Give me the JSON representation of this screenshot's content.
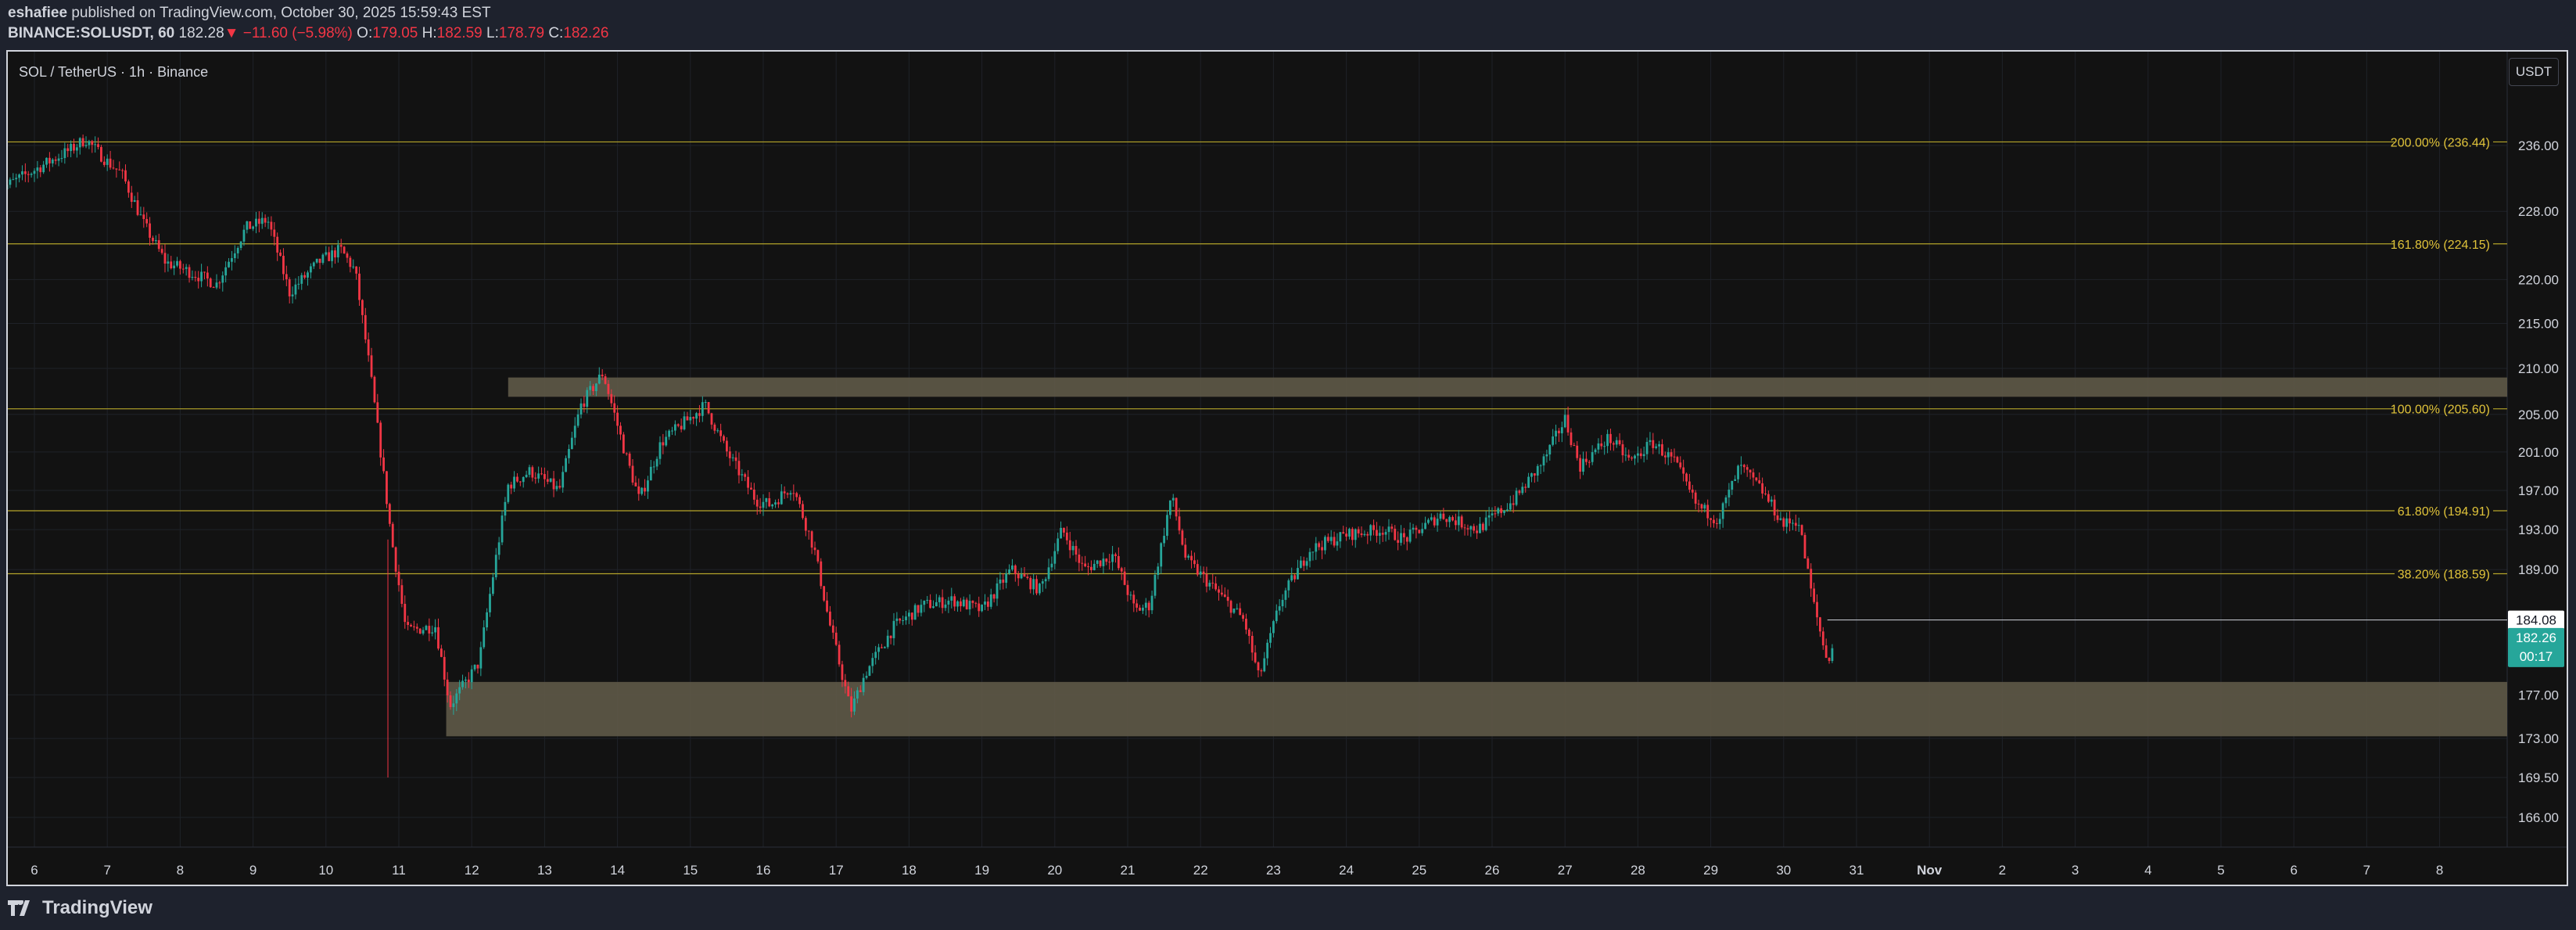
{
  "header": {
    "publisher": "eshafiee",
    "published_text": "published on TradingView.com, October 30, 2025 15:59:43 EST",
    "symbol": "BINANCE:SOLUSDT, 60",
    "last": "182.28",
    "change": "−11.60 (−5.98%)",
    "o_label": "O:",
    "o_value": "179.05",
    "h_label": "H:",
    "h_value": "182.59",
    "l_label": "L:",
    "l_value": "178.79",
    "c_label": "C:",
    "c_value": "182.26"
  },
  "legend": {
    "title": "SOL / TetherUS · 1h · Binance"
  },
  "currency_button": "USDT",
  "footer": {
    "brand": "TradingView"
  },
  "colors": {
    "up": "#26a69a",
    "down": "#f23645",
    "fib": "#b5a52a",
    "fib_text": "#e0c33a",
    "zone": "#5c5646",
    "background": "#121212",
    "axis_text": "#d1d4dc"
  },
  "chart_data": {
    "type": "candlestick",
    "title": "SOL / TetherUS · 1h · Binance",
    "ylim": [
      163,
      240
    ],
    "y_scale": "log",
    "x_tick_labels": [
      "6",
      "7",
      "8",
      "9",
      "10",
      "11",
      "12",
      "13",
      "14",
      "15",
      "16",
      "17",
      "18",
      "19",
      "20",
      "21",
      "22",
      "23",
      "24",
      "25",
      "26",
      "27",
      "28",
      "29",
      "30",
      "31",
      "Nov",
      "2",
      "3",
      "4",
      "5",
      "6",
      "7",
      "8"
    ],
    "y_tick_labels": [
      "236.00",
      "228.00",
      "220.00",
      "215.00",
      "210.00",
      "205.00",
      "201.00",
      "197.00",
      "193.00",
      "189.00",
      "177.00",
      "173.00",
      "169.50",
      "166.00"
    ],
    "fib_levels": [
      {
        "label": "200.00% (236.44)",
        "price": 236.44
      },
      {
        "label": "161.80% (224.15)",
        "price": 224.15
      },
      {
        "label": "100.00% (205.60)",
        "price": 205.6
      },
      {
        "label": "61.80% (194.91)",
        "price": 194.91
      },
      {
        "label": "38.20% (188.59)",
        "price": 188.59
      }
    ],
    "zones": [
      {
        "name": "resistance",
        "top": 209.0,
        "bottom": 206.9,
        "start_day": 12.5
      },
      {
        "name": "support",
        "top": 178.2,
        "bottom": 173.2,
        "start_day": 11.65
      }
    ],
    "prev_close_line": {
      "price": 184.08,
      "label": "184.08"
    },
    "last_price": {
      "price": 182.26,
      "label": "182.26",
      "countdown": "00:17"
    },
    "price_path": [
      [
        5.5,
        230.5
      ],
      [
        6.0,
        233.0
      ],
      [
        6.5,
        235.5
      ],
      [
        6.7,
        236.8
      ],
      [
        7.0,
        234.0
      ],
      [
        7.2,
        232.5
      ],
      [
        7.5,
        226.5
      ],
      [
        7.8,
        222.0
      ],
      [
        8.1,
        221.0
      ],
      [
        8.5,
        219.5
      ],
      [
        8.9,
        226.0
      ],
      [
        9.2,
        227.0
      ],
      [
        9.5,
        218.5
      ],
      [
        9.9,
        222.0
      ],
      [
        10.2,
        223.5
      ],
      [
        10.4,
        221.0
      ],
      [
        10.6,
        210.0
      ],
      [
        10.9,
        192.0
      ],
      [
        11.1,
        183.0
      ],
      [
        11.5,
        183.5
      ],
      [
        11.7,
        176.0
      ],
      [
        11.9,
        178.0
      ],
      [
        12.1,
        180.0
      ],
      [
        12.5,
        197.5
      ],
      [
        12.8,
        199.0
      ],
      [
        13.2,
        197.0
      ],
      [
        13.5,
        206.0
      ],
      [
        13.8,
        209.5
      ],
      [
        14.1,
        201.0
      ],
      [
        14.3,
        196.0
      ],
      [
        14.6,
        202.0
      ],
      [
        14.9,
        204.0
      ],
      [
        15.2,
        206.0
      ],
      [
        15.5,
        201.0
      ],
      [
        15.9,
        196.0
      ],
      [
        16.1,
        195.5
      ],
      [
        16.4,
        197.5
      ],
      [
        16.7,
        191.0
      ],
      [
        16.9,
        184.0
      ],
      [
        17.2,
        175.5
      ],
      [
        17.4,
        179.0
      ],
      [
        17.8,
        183.5
      ],
      [
        18.2,
        185.5
      ],
      [
        18.6,
        186.0
      ],
      [
        19.0,
        185.0
      ],
      [
        19.4,
        189.0
      ],
      [
        19.8,
        187.0
      ],
      [
        20.1,
        193.0
      ],
      [
        20.4,
        189.0
      ],
      [
        20.8,
        190.5
      ],
      [
        21.1,
        185.0
      ],
      [
        21.3,
        185.5
      ],
      [
        21.6,
        196.5
      ],
      [
        21.8,
        190.0
      ],
      [
        22.2,
        187.0
      ],
      [
        22.6,
        184.0
      ],
      [
        22.8,
        178.5
      ],
      [
        23.1,
        186.0
      ],
      [
        23.5,
        191.0
      ],
      [
        24.0,
        192.5
      ],
      [
        24.5,
        193.0
      ],
      [
        24.8,
        192.0
      ],
      [
        25.3,
        194.5
      ],
      [
        25.8,
        193.0
      ],
      [
        26.3,
        196.0
      ],
      [
        26.7,
        200.0
      ],
      [
        27.0,
        204.5
      ],
      [
        27.2,
        199.5
      ],
      [
        27.6,
        202.5
      ],
      [
        27.9,
        200.0
      ],
      [
        28.2,
        202.0
      ],
      [
        28.5,
        200.0
      ],
      [
        28.8,
        195.5
      ],
      [
        29.1,
        194.0
      ],
      [
        29.4,
        199.5
      ],
      [
        29.7,
        197.0
      ],
      [
        30.0,
        193.5
      ],
      [
        30.2,
        194.0
      ],
      [
        30.4,
        186.0
      ],
      [
        30.6,
        180.0
      ],
      [
        30.7,
        182.3
      ]
    ]
  }
}
